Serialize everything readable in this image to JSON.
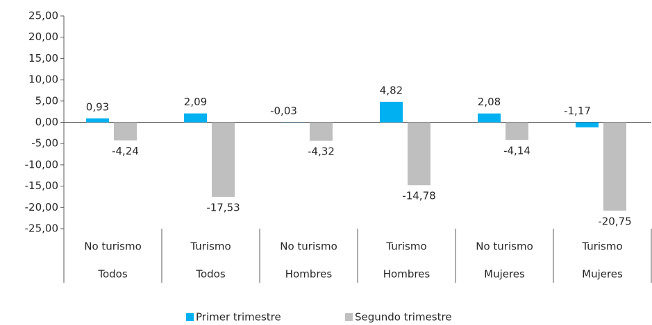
{
  "chart_data": {
    "type": "bar",
    "categories": [
      "No turismo",
      "Turismo",
      "No turismo",
      "Turismo",
      "No turismo",
      "Turismo"
    ],
    "groups": [
      "Todos",
      "Todos",
      "Hombres",
      "Hombres",
      "Mujeres",
      "Mujeres"
    ],
    "series": [
      {
        "name": "Primer trimestre",
        "color": "#00b0f0",
        "values": [
          0.93,
          2.09,
          -0.03,
          4.82,
          2.08,
          -1.17
        ],
        "value_labels": [
          "0,93",
          "2,09",
          "-0,03",
          "4,82",
          "2,08",
          "-1,17"
        ]
      },
      {
        "name": "Segundo trimestre",
        "color": "#bfbfbf",
        "values": [
          -4.24,
          -17.53,
          -4.32,
          -14.78,
          -4.14,
          -20.75
        ],
        "value_labels": [
          "-4,24",
          "-17,53",
          "-4,32",
          "-14,78",
          "-4,14",
          "-20,75"
        ]
      }
    ],
    "ylim": [
      -25,
      25
    ],
    "yticks": [
      {
        "value": -25,
        "label": "-25,00"
      },
      {
        "value": -20,
        "label": "-20,00"
      },
      {
        "value": -15,
        "label": "-15,00"
      },
      {
        "value": -10,
        "label": "-10,00"
      },
      {
        "value": -5,
        "label": "-5,00"
      },
      {
        "value": 0,
        "label": "0,00"
      },
      {
        "value": 5,
        "label": "5,00"
      },
      {
        "value": 10,
        "label": "10,00"
      },
      {
        "value": 15,
        "label": "15,00"
      },
      {
        "value": 20,
        "label": "20,00"
      },
      {
        "value": 25,
        "label": "25,00"
      }
    ],
    "legend": "bottom"
  }
}
